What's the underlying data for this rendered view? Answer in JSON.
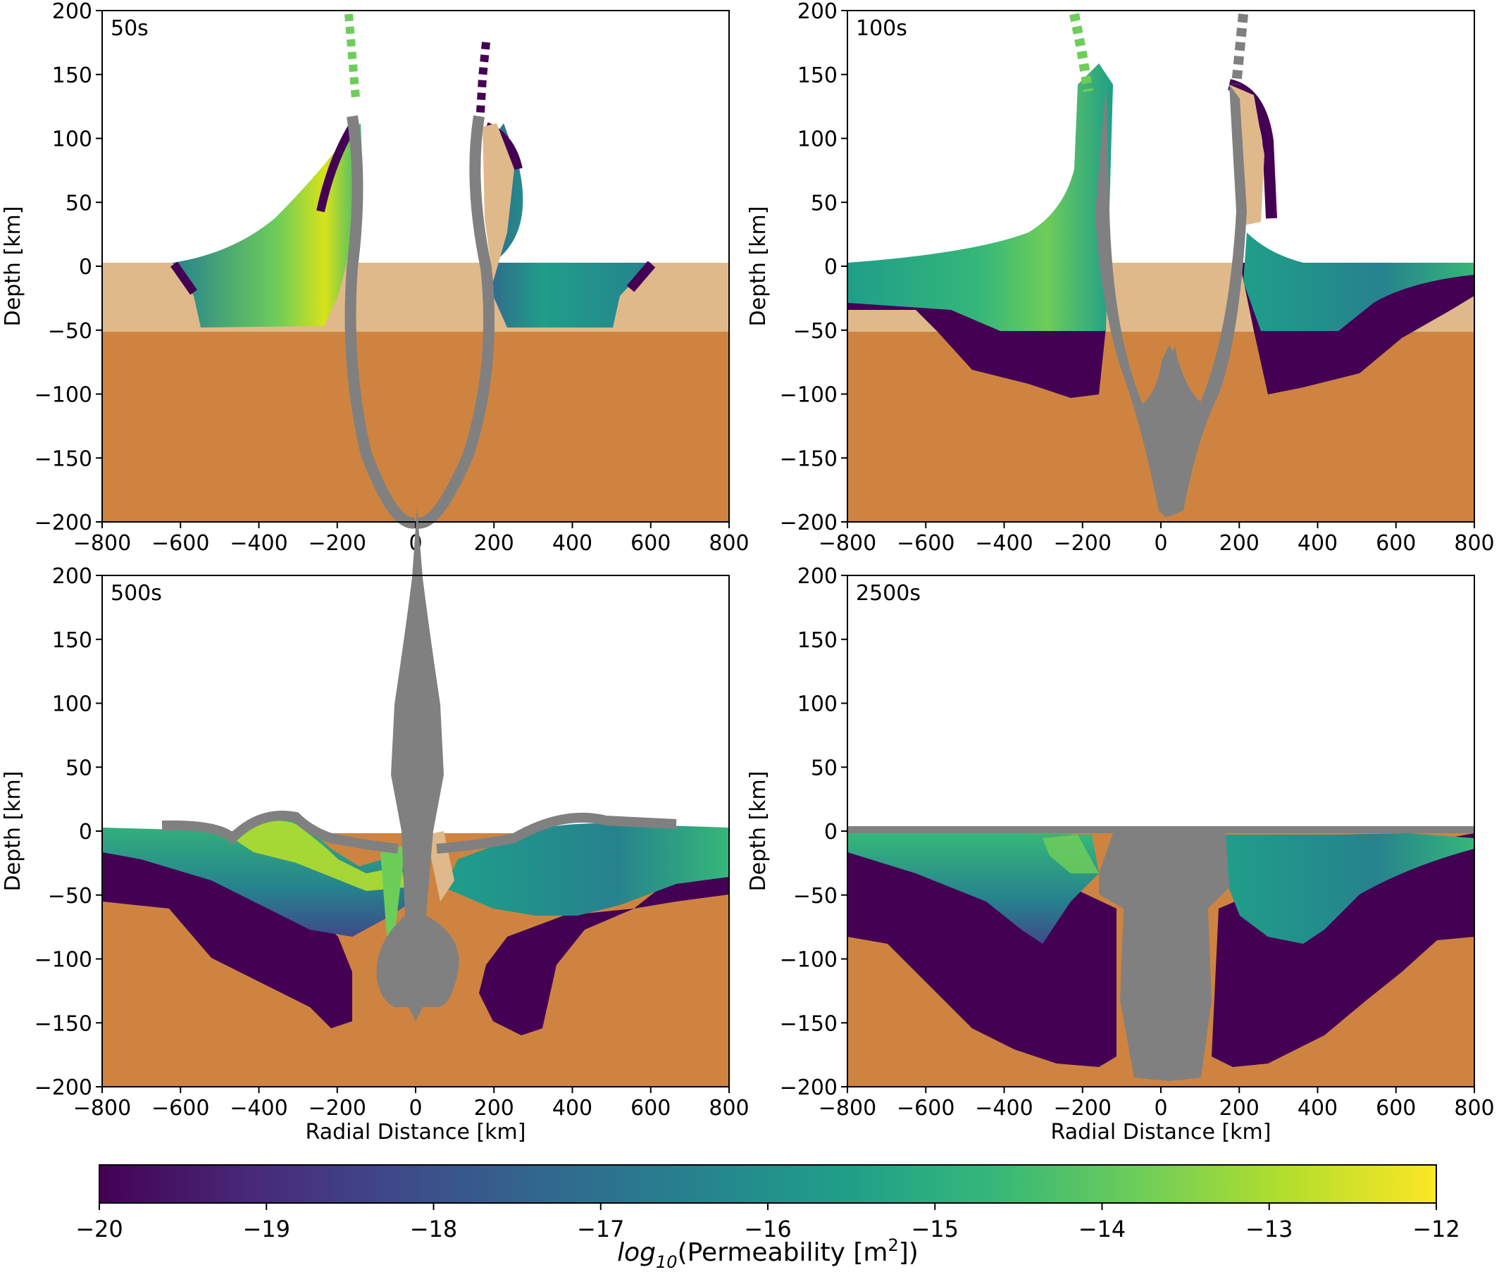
{
  "colors": {
    "lower_layer": "#CE8440",
    "upper_layer": "#E0B98B",
    "grey_material": "#808080",
    "viridis_stops": [
      "#440154",
      "#482878",
      "#3E4A89",
      "#31688E",
      "#26828E",
      "#1F9E89",
      "#35B779",
      "#6DCD59",
      "#B4DE2C",
      "#FDE725"
    ]
  },
  "chart_data": [
    {
      "type": "heatmap",
      "panel_label": "50s",
      "xlabel": "",
      "ylabel": "Depth [km]",
      "xlim": [
        -800,
        800
      ],
      "ylim": [
        -200,
        200
      ],
      "xticks": [
        "−800",
        "−600",
        "−400",
        "−200",
        "0",
        "200",
        "400",
        "600",
        "800"
      ],
      "yticks": [
        "200",
        "150",
        "100",
        "50",
        "0",
        "−50",
        "−100",
        "−150",
        "−200"
      ],
      "layer_boundaries": {
        "upper_top_km": 2,
        "lower_top_km": -52
      }
    },
    {
      "type": "heatmap",
      "panel_label": "100s",
      "xlabel": "",
      "ylabel": "Depth [km]",
      "xlim": [
        -800,
        800
      ],
      "ylim": [
        -200,
        200
      ],
      "xticks": [
        "−800",
        "−600",
        "−400",
        "−200",
        "0",
        "200",
        "400",
        "600",
        "800"
      ],
      "yticks": [
        "200",
        "150",
        "100",
        "50",
        "0",
        "−50",
        "−100",
        "−150",
        "−200"
      ],
      "layer_boundaries": {
        "upper_top_km": 2,
        "lower_top_km": -52
      }
    },
    {
      "type": "heatmap",
      "panel_label": "500s",
      "xlabel": "Radial Distance [km]",
      "ylabel": "Depth [km]",
      "xlim": [
        -800,
        800
      ],
      "ylim": [
        -200,
        200
      ],
      "xticks": [
        "−800",
        "−600",
        "−400",
        "−200",
        "0",
        "200",
        "400",
        "600",
        "800"
      ],
      "yticks": [
        "200",
        "150",
        "100",
        "50",
        "0",
        "−50",
        "−100",
        "−150",
        "−200"
      ],
      "layer_boundaries": {
        "upper_top_km": 2,
        "lower_top_km": -50
      }
    },
    {
      "type": "heatmap",
      "panel_label": "2500s",
      "xlabel": "Radial Distance [km]",
      "ylabel": "Depth [km]",
      "xlim": [
        -800,
        800
      ],
      "ylim": [
        -200,
        200
      ],
      "xticks": [
        "−800",
        "−600",
        "−400",
        "−200",
        "0",
        "200",
        "400",
        "600",
        "800"
      ],
      "yticks": [
        "200",
        "150",
        "100",
        "50",
        "0",
        "−50",
        "−100",
        "−150",
        "−200"
      ],
      "layer_boundaries": {
        "upper_top_km": 2,
        "lower_top_km": -85
      }
    }
  ],
  "colorbar": {
    "range": [
      -20,
      -12
    ],
    "ticks": [
      "−20",
      "−19",
      "−18",
      "−17",
      "−16",
      "−15",
      "−14",
      "−13",
      "−12"
    ],
    "label_prefix": "log",
    "label_subscript": "10",
    "label_main": "(Permeability [m",
    "label_sup": "2",
    "label_suffix": "])"
  }
}
